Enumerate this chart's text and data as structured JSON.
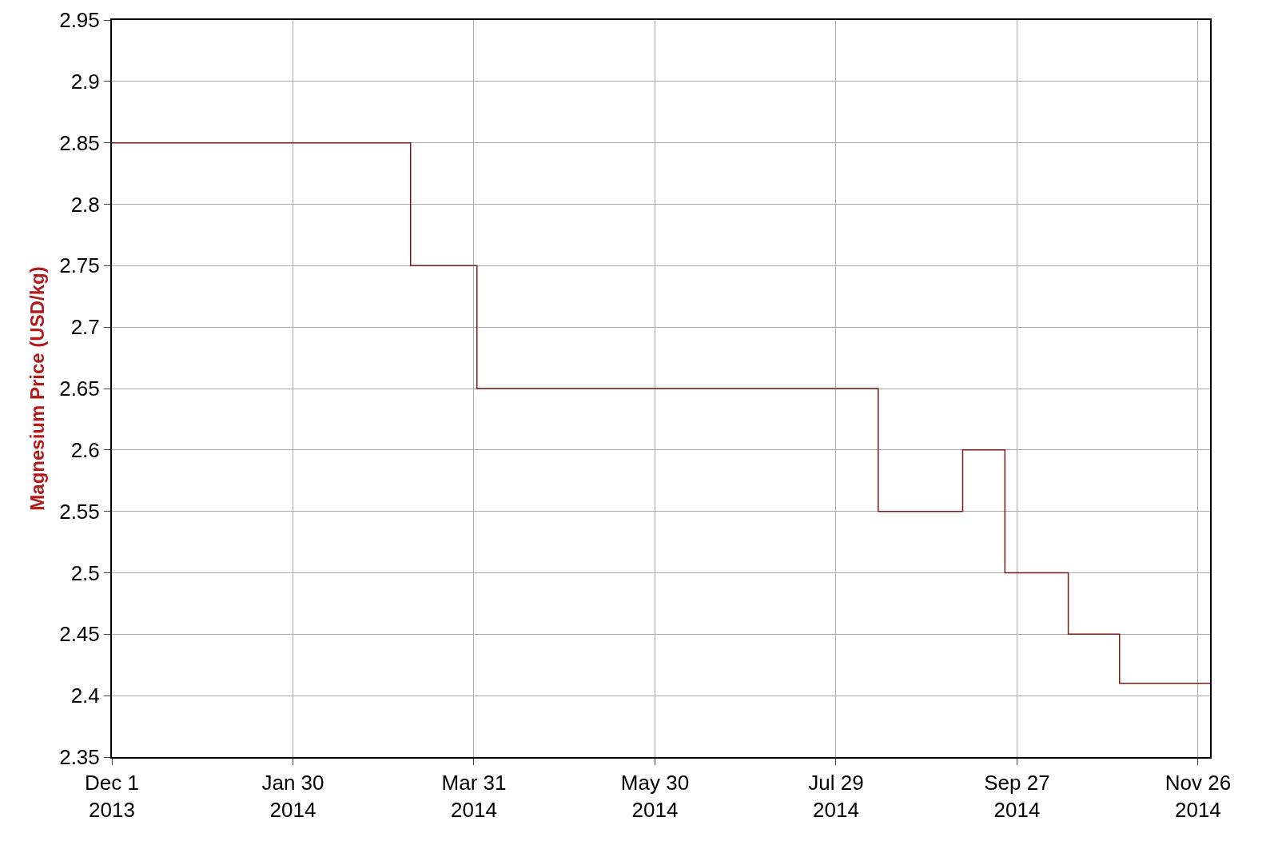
{
  "chart_data": {
    "type": "step",
    "ylabel": "Magnesium Price (USD/kg)",
    "x": [
      "2013-12-01",
      "2014-03-10",
      "2014-04-01",
      "2014-08-12",
      "2014-09-09",
      "2014-09-23",
      "2014-10-14",
      "2014-10-31",
      "2014-11-30"
    ],
    "series": [
      {
        "color": "#7a1a1a",
        "values": [
          2.85,
          2.75,
          2.65,
          2.55,
          2.6,
          2.5,
          2.45,
          2.41,
          2.41
        ]
      }
    ],
    "xlim": [
      "2013-12-01",
      "2014-11-30"
    ],
    "xticks": [
      {
        "value": "2013-12-01",
        "label": "Dec 1\n2013"
      },
      {
        "value": "2014-01-30",
        "label": "Jan 30\n2014"
      },
      {
        "value": "2014-03-31",
        "label": "Mar 31\n2014"
      },
      {
        "value": "2014-05-30",
        "label": "May 30\n2014"
      },
      {
        "value": "2014-07-29",
        "label": "Jul 29\n2014"
      },
      {
        "value": "2014-09-27",
        "label": "Sep 27\n2014"
      },
      {
        "value": "2014-11-26",
        "label": "Nov 26\n2014"
      }
    ],
    "ylim": [
      2.35,
      2.95
    ],
    "yticks": [
      2.35,
      2.4,
      2.45,
      2.5,
      2.55,
      2.6,
      2.65,
      2.7,
      2.75,
      2.8,
      2.85,
      2.9,
      2.95
    ],
    "grid": true,
    "marker": "none",
    "line_style": "solid"
  }
}
